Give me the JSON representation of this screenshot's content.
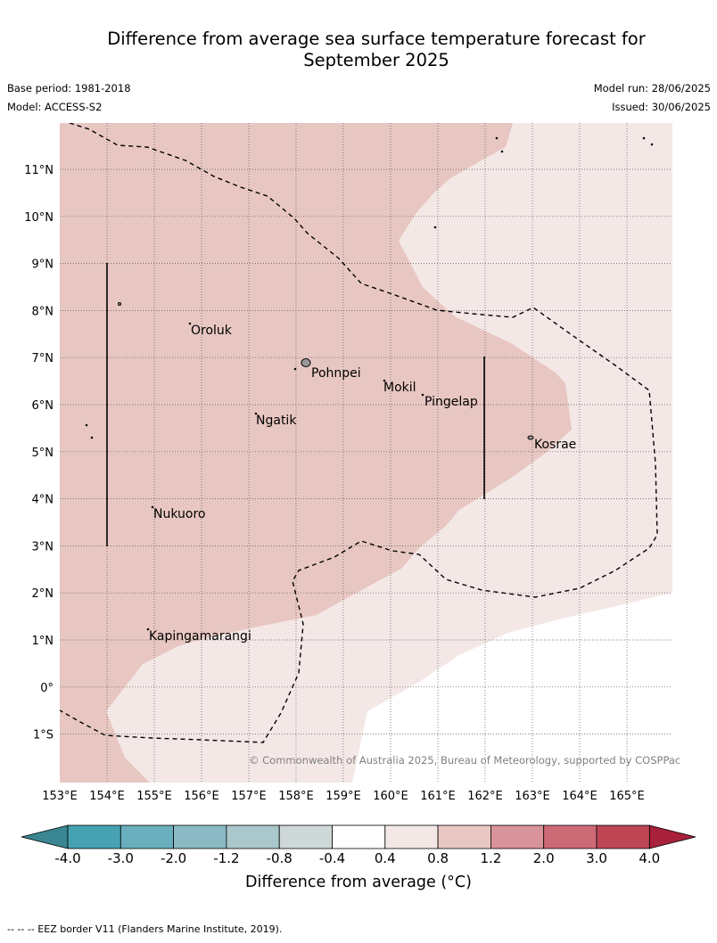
{
  "title_line1": "Difference from average sea surface temperature forecast for",
  "title_line2": "September 2025",
  "base_period": "Base period: 1981-2018",
  "model": "Model: ACCESS-S2",
  "model_run": "Model run: 28/06/2025",
  "issued": "Issued: 30/06/2025",
  "copyright": "© Commonwealth of Australia 2025, Bureau of Meteorology, supported by COSPPac",
  "footer": "--  --  -- EEZ border V11 (Flanders Marine Institute, 2019).",
  "colorbar_label": "Difference from average (°C)",
  "colorbar": {
    "ticks": [
      "-4.0",
      "-3.0",
      "-2.0",
      "-1.2",
      "-0.8",
      "-0.4",
      "0.4",
      "0.8",
      "1.2",
      "2.0",
      "3.0",
      "4.0"
    ],
    "colors": [
      "#46a2b2",
      "#6aafbd",
      "#8bbac4",
      "#aac7cb",
      "#cfd8d8",
      "#ffffff",
      "#f4e8e6",
      "#e8c7c2",
      "#d9939b",
      "#cc6a76",
      "#bf4655"
    ],
    "under_color": "#3a8793",
    "over_color": "#a8213a"
  },
  "lat_labels": [
    "11°N",
    "10°N",
    "9°N",
    "8°N",
    "7°N",
    "6°N",
    "5°N",
    "4°N",
    "3°N",
    "2°N",
    "1°N",
    "0°",
    "1°S"
  ],
  "lon_labels": [
    "153°E",
    "154°E",
    "155°E",
    "156°E",
    "157°E",
    "158°E",
    "159°E",
    "160°E",
    "161°E",
    "162°E",
    "163°E",
    "164°E",
    "165°E"
  ],
  "places": [
    "Oroluk",
    "Pohnpei",
    "Mokil",
    "Pingelap",
    "Ngatik",
    "Kosrae",
    "Nukuoro",
    "Kapingamarangi"
  ],
  "anomaly_colors": {
    "band_0_4_to_0_8": "#f4e8e6",
    "band_0_8_to_1_2": "#e8c7c2",
    "band_neutral": "#ffffff"
  }
}
